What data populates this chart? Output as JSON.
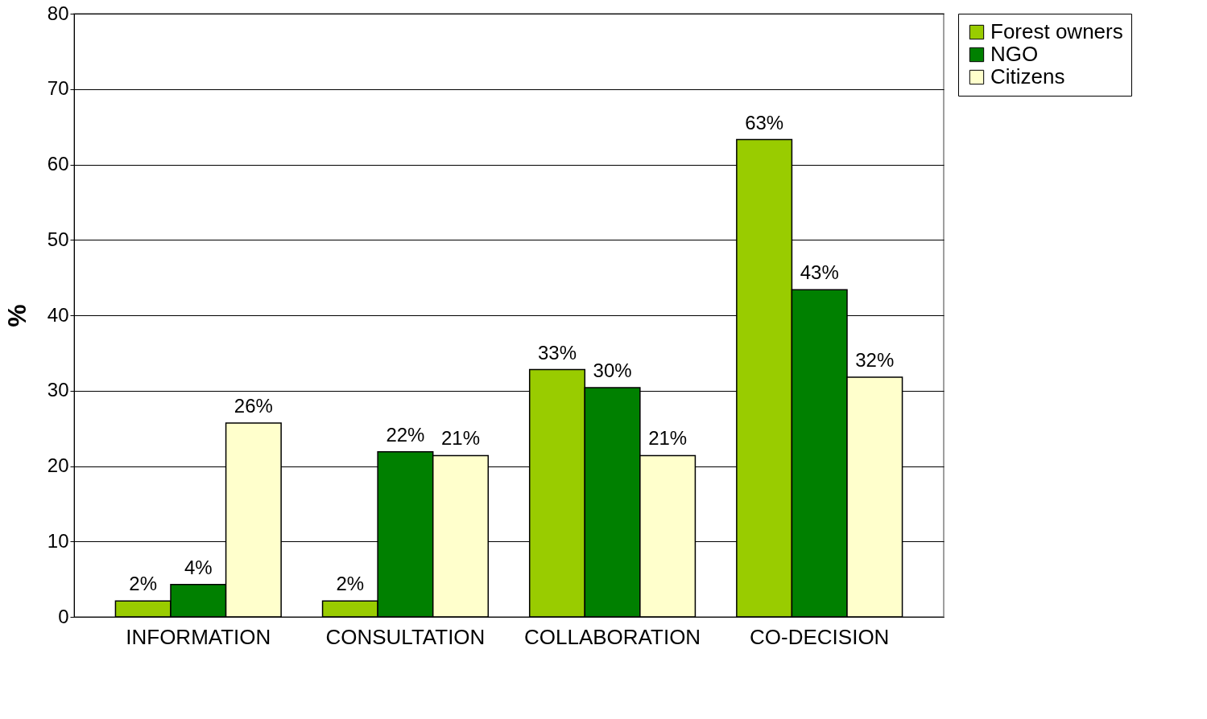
{
  "chart_data": {
    "type": "bar",
    "ylabel": "%",
    "categories": [
      "INFORMATION",
      "CONSULTATION",
      "COLLABORATION",
      "CO-DECISION"
    ],
    "series": [
      {
        "name": "Forest owners",
        "color": "#99cc00",
        "values": [
          2.1,
          2.1,
          32.8,
          63.3
        ],
        "value_labels": [
          "2%",
          "2%",
          "33%",
          "63%"
        ]
      },
      {
        "name": "NGO",
        "color": "#008000",
        "values": [
          4.3,
          21.9,
          30.4,
          43.4
        ],
        "value_labels": [
          "4%",
          "22%",
          "30%",
          "43%"
        ]
      },
      {
        "name": "Citizens",
        "color": "#ffffcc",
        "values": [
          25.7,
          21.4,
          21.4,
          31.8
        ],
        "value_labels": [
          "26%",
          "21%",
          "21%",
          "32%"
        ]
      }
    ],
    "ylim": [
      0,
      80
    ],
    "yticks": [
      0,
      10,
      20,
      30,
      40,
      50,
      60,
      70,
      80
    ],
    "grid": "y",
    "legend": "right"
  }
}
